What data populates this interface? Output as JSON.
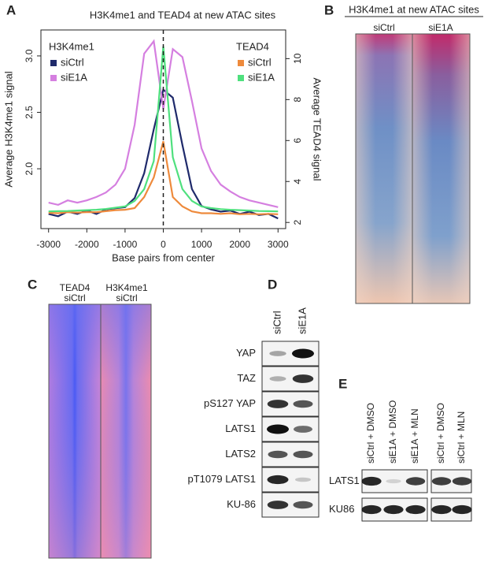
{
  "panel_labels": [
    "A",
    "B",
    "C",
    "D",
    "E"
  ],
  "chart_data": {
    "type": "line",
    "title": "H3K4me1 and TEAD4 at new ATAC sites",
    "x": [
      -3000,
      -2750,
      -2500,
      -2250,
      -2000,
      -1750,
      -1500,
      -1250,
      -1000,
      -750,
      -500,
      -250,
      0,
      250,
      500,
      750,
      1000,
      1250,
      1500,
      1750,
      2000,
      2250,
      2500,
      2750,
      3000
    ],
    "series": [
      {
        "name": "siCtrl",
        "group": "H3K4me1",
        "color": "#1f2a6b",
        "values": [
          1.6,
          1.58,
          1.62,
          1.6,
          1.63,
          1.6,
          1.64,
          1.65,
          1.66,
          1.74,
          1.96,
          2.35,
          2.7,
          2.63,
          2.21,
          1.82,
          1.67,
          1.64,
          1.62,
          1.63,
          1.6,
          1.62,
          1.59,
          1.6,
          1.56
        ]
      },
      {
        "name": "siE1A",
        "group": "H3K4me1",
        "color": "#d57fe0",
        "values": [
          1.7,
          1.68,
          1.72,
          1.7,
          1.72,
          1.75,
          1.79,
          1.86,
          2.0,
          2.39,
          3.02,
          3.13,
          2.53,
          3.06,
          2.99,
          2.6,
          2.18,
          1.98,
          1.86,
          1.8,
          1.75,
          1.72,
          1.7,
          1.68,
          1.66
        ]
      },
      {
        "name": "siCtrl",
        "group": "TEAD4",
        "color": "#ee8a3c",
        "axis": "y2",
        "values": [
          2.47,
          2.45,
          2.5,
          2.48,
          2.5,
          2.5,
          2.55,
          2.6,
          2.62,
          2.7,
          3.24,
          4.2,
          5.96,
          3.24,
          2.78,
          2.54,
          2.45,
          2.45,
          2.42,
          2.45,
          2.4,
          2.42,
          2.4,
          2.42,
          2.4
        ]
      },
      {
        "name": "siE1A",
        "group": "TEAD4",
        "color": "#4fe07e",
        "axis": "y2",
        "values": [
          2.54,
          2.55,
          2.56,
          2.58,
          2.6,
          2.62,
          2.66,
          2.72,
          2.78,
          3.05,
          3.63,
          5.0,
          10.6,
          5.18,
          3.63,
          3.05,
          2.78,
          2.7,
          2.65,
          2.62,
          2.6,
          2.58,
          2.56,
          2.55,
          2.54
        ]
      }
    ],
    "xlabel": "Base pairs from center",
    "ylabel": "Average H3K4me1 signal",
    "y2label": "Average TEAD4 signal",
    "xlim": [
      -3200,
      3200
    ],
    "xticks": [
      -3000,
      -2000,
      -1000,
      0,
      1000,
      2000,
      3000
    ],
    "ylim": [
      1.47,
      3.23
    ],
    "yticks": [
      {
        "value": 2,
        "label": "2.0"
      },
      2.5,
      {
        "value": 3,
        "label": "3.0"
      }
    ],
    "y2lim": [
      1.7,
      11.4
    ],
    "y2ticks": [
      2,
      4,
      6,
      8,
      10
    ],
    "vline": 0
  },
  "heatmap_b": {
    "title": "H3K4me1 at new ATAC sites",
    "columns": [
      "siCtrl",
      "siE1A"
    ]
  },
  "heatmap_c": {
    "columns": [
      [
        "TEAD4",
        "siCtrl"
      ],
      [
        "H3K4me1",
        "siCtrl"
      ]
    ]
  },
  "blot_d": {
    "columns": [
      "siCtrl",
      "siE1A"
    ],
    "rows": [
      "YAP",
      "TAZ",
      "pS127 YAP",
      "LATS1",
      "LATS2",
      "pT1079 LATS1",
      "KU-86"
    ]
  },
  "blot_e": {
    "columns": [
      "siCtrl + DMSO",
      "siE1A + DMSO",
      "siE1A + MLN",
      "siCtrl + DMSO",
      "siCtrl + MLN"
    ],
    "rows": [
      "LATS1",
      "KU86"
    ]
  }
}
